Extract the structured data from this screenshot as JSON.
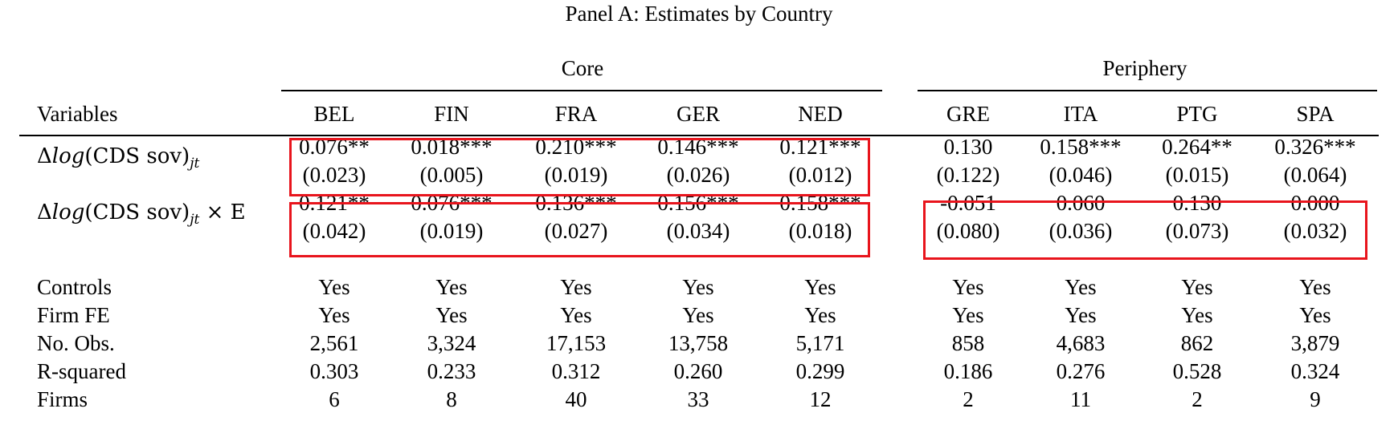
{
  "title": "Panel A: Estimates by Country",
  "groups": {
    "core": "Core",
    "periphery": "Periphery"
  },
  "header": {
    "variables": "Variables",
    "columns": [
      "BEL",
      "FIN",
      "FRA",
      "GER",
      "NED",
      "GRE",
      "ITA",
      "PTG",
      "SPA"
    ]
  },
  "coef_rows": [
    {
      "label_delta": "Δ",
      "label_log": "log",
      "label_inner": "(CDS sov)",
      "label_sub": "jt",
      "label_suffix": "",
      "estimates": [
        "0.076**",
        "0.018***",
        "0.210***",
        "0.146***",
        "0.121***",
        "0.130",
        "0.158***",
        "0.264**",
        "0.326***"
      ],
      "std_errors": [
        "(0.023)",
        "(0.005)",
        "(0.019)",
        "(0.026)",
        "(0.012)",
        "(0.122)",
        "(0.046)",
        "(0.015)",
        "(0.064)"
      ]
    },
    {
      "label_delta": "Δ",
      "label_log": "log",
      "label_inner": "(CDS sov)",
      "label_sub": "jt",
      "label_suffix": " × E",
      "estimates": [
        "0.121**",
        "0.076***",
        "0.136***",
        "0.156***",
        "0.158***",
        "-0.051",
        "0.060",
        "0.130",
        "0.000"
      ],
      "std_errors": [
        "(0.042)",
        "(0.019)",
        "(0.027)",
        "(0.034)",
        "(0.018)",
        "(0.080)",
        "(0.036)",
        "(0.073)",
        "(0.032)"
      ]
    }
  ],
  "stat_rows": [
    {
      "label": "Controls",
      "values": [
        "Yes",
        "Yes",
        "Yes",
        "Yes",
        "Yes",
        "Yes",
        "Yes",
        "Yes",
        "Yes"
      ]
    },
    {
      "label": "Firm FE",
      "values": [
        "Yes",
        "Yes",
        "Yes",
        "Yes",
        "Yes",
        "Yes",
        "Yes",
        "Yes",
        "Yes"
      ]
    },
    {
      "label": "No. Obs.",
      "values": [
        "2,561",
        "3,324",
        "17,153",
        "13,758",
        "5,171",
        "858",
        "4,683",
        "862",
        "3,879"
      ]
    },
    {
      "label": "R-squared",
      "values": [
        "0.303",
        "0.233",
        "0.312",
        "0.260",
        "0.299",
        "0.186",
        "0.276",
        "0.528",
        "0.324"
      ]
    },
    {
      "label": "Firms",
      "values": [
        "6",
        "8",
        "40",
        "33",
        "12",
        "2",
        "11",
        "2",
        "9"
      ]
    }
  ],
  "highlight_color": "#e8141c"
}
